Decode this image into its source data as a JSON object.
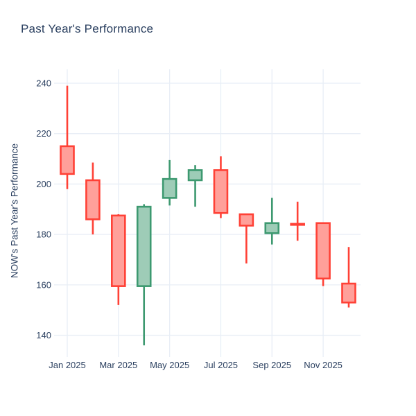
{
  "title": "Past Year's Performance",
  "chart_data": {
    "type": "candlestick",
    "title": "Past Year's Performance",
    "xlabel": "",
    "ylabel": "NOW's Past Year's Performance",
    "x": [
      "Jan 2025",
      "Feb 2025",
      "Mar 2025",
      "Apr 2025",
      "May 2025",
      "Jun 2025",
      "Jul 2025",
      "Aug 2025",
      "Sep 2025",
      "Oct 2025",
      "Nov 2025",
      "Dec 2025"
    ],
    "series": [
      {
        "name": "NOW",
        "open": [
          215,
          201.5,
          187.5,
          159.5,
          194.5,
          201.5,
          205.5,
          188,
          180.5,
          184.2,
          184.5,
          160.5
        ],
        "high": [
          239,
          208.5,
          188,
          192,
          209.5,
          207.5,
          211,
          188,
          194.5,
          193,
          184.5,
          175
        ],
        "low": [
          198,
          180,
          152,
          136,
          191.5,
          191,
          186.5,
          168.5,
          176,
          177.5,
          159.5,
          151
        ],
        "close": [
          204,
          186,
          159.5,
          191,
          202,
          205.5,
          188.5,
          183.5,
          184.5,
          183.8,
          162.5,
          153
        ]
      }
    ],
    "xtick_labels": [
      "Jan 2025",
      "Mar 2025",
      "May 2025",
      "Jul 2025",
      "Sep 2025",
      "Nov 2025"
    ],
    "xtick_month_indices": [
      0,
      2,
      4,
      6,
      8,
      10
    ],
    "yticks": [
      140,
      160,
      180,
      200,
      220,
      240
    ],
    "ylim": [
      133,
      245.5
    ],
    "grid": true,
    "legend": false,
    "colors": {
      "increasing_line": "#3D9970",
      "increasing_fill": "#9ECCB7",
      "decreasing_line": "#FF4136",
      "decreasing_fill": "#FFA09A",
      "grid": "#E8EEF6",
      "text": "#2a3f5f",
      "background": "#FFFFFF"
    }
  }
}
